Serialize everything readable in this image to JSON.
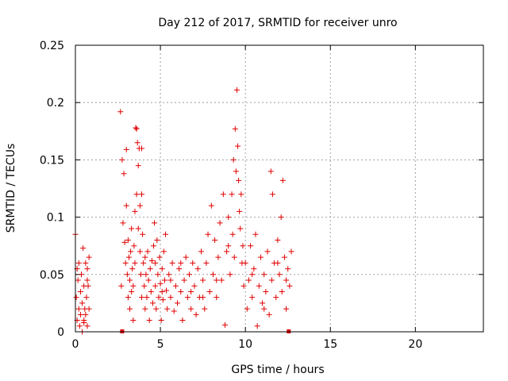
{
  "chart_data": {
    "type": "scatter",
    "title": "Day 212 of 2017, SRMTID for receiver unro",
    "xlabel": "GPS time / hours",
    "ylabel": "SRMTID / TECUs",
    "xlim": [
      0,
      24
    ],
    "ylim": [
      0,
      0.25
    ],
    "x_ticks": [
      0,
      5,
      10,
      15,
      20
    ],
    "y_ticks": [
      0,
      0.05,
      0.1,
      0.15,
      0.2,
      0.25
    ],
    "x_tick_labels": [
      "0",
      "5",
      "10",
      "15",
      "20"
    ],
    "y_tick_labels": [
      "0",
      "0.05",
      "0.1",
      "0.15",
      "0.2",
      "0.25"
    ],
    "grid": true,
    "legend": "none",
    "marker": "plus",
    "color": "#e00000",
    "series": [
      {
        "points": [
          [
            0.0,
            0.085
          ],
          [
            0.05,
            0.03
          ],
          [
            0.1,
            0.055
          ],
          [
            0.1,
            0.01
          ],
          [
            0.15,
            0.045
          ],
          [
            0.2,
            0.02
          ],
          [
            0.2,
            0.06
          ],
          [
            0.25,
            0.005
          ],
          [
            0.3,
            0.035
          ],
          [
            0.3,
            0.015
          ],
          [
            0.35,
            0.05
          ],
          [
            0.4,
            0.025
          ],
          [
            0.4,
            0.0
          ],
          [
            0.45,
            0.073
          ],
          [
            0.5,
            0.01
          ],
          [
            0.5,
            0.04
          ],
          [
            0.55,
            0.02
          ],
          [
            0.6,
            0.06
          ],
          [
            0.6,
            0.015
          ],
          [
            0.65,
            0.03
          ],
          [
            0.7,
            0.005
          ],
          [
            0.7,
            0.055
          ],
          [
            0.75,
            0.04
          ],
          [
            0.8,
            0.02
          ],
          [
            0.8,
            0.065
          ],
          [
            2.65,
            0.192
          ],
          [
            2.7,
            0.04
          ],
          [
            2.75,
            0.15
          ],
          [
            2.8,
            0.095
          ],
          [
            2.85,
            0.138
          ],
          [
            2.9,
            0.078
          ],
          [
            2.95,
            0.06
          ],
          [
            3.0,
            0.11
          ],
          [
            3.0,
            0.159
          ],
          [
            3.05,
            0.05
          ],
          [
            3.1,
            0.08
          ],
          [
            3.1,
            0.03
          ],
          [
            3.15,
            0.065
          ],
          [
            3.2,
            0.045
          ],
          [
            3.2,
            0.02
          ],
          [
            3.25,
            0.07
          ],
          [
            3.3,
            0.035
          ],
          [
            3.3,
            0.09
          ],
          [
            3.35,
            0.055
          ],
          [
            3.4,
            0.01
          ],
          [
            3.4,
            0.04
          ],
          [
            3.45,
            0.075
          ],
          [
            3.5,
            0.06
          ],
          [
            3.5,
            0.105
          ],
          [
            3.55,
            0.178
          ],
          [
            3.6,
            0.177
          ],
          [
            3.6,
            0.12
          ],
          [
            3.65,
            0.165
          ],
          [
            3.7,
            0.145
          ],
          [
            3.7,
            0.09
          ],
          [
            3.75,
            0.16
          ],
          [
            3.8,
            0.07
          ],
          [
            3.8,
            0.11
          ],
          [
            3.85,
            0.05
          ],
          [
            3.9,
            0.12
          ],
          [
            3.9,
            0.03
          ],
          [
            3.95,
            0.085
          ],
          [
            4.0,
            0.06
          ],
          [
            4.05,
            0.04
          ],
          [
            4.1,
            0.065
          ],
          [
            4.1,
            0.02
          ],
          [
            4.15,
            0.05
          ],
          [
            4.2,
            0.03
          ],
          [
            4.25,
            0.07
          ],
          [
            4.3,
            0.045
          ],
          [
            4.35,
            0.01
          ],
          [
            4.4,
            0.055
          ],
          [
            4.45,
            0.035
          ],
          [
            4.5,
            0.062
          ],
          [
            4.55,
            0.025
          ],
          [
            4.6,
            0.075
          ],
          [
            4.65,
            0.095
          ],
          [
            4.7,
            0.04
          ],
          [
            4.75,
            0.02
          ],
          [
            4.8,
            0.08
          ],
          [
            4.85,
            0.05
          ],
          [
            4.9,
            0.03
          ],
          [
            4.95,
            0.065
          ],
          [
            5.0,
            0.042
          ],
          [
            5.05,
            0.01
          ],
          [
            5.1,
            0.055
          ],
          [
            5.15,
            0.028
          ],
          [
            5.2,
            0.07
          ],
          [
            5.25,
            0.045
          ],
          [
            5.3,
            0.085
          ],
          [
            5.35,
            0.036
          ],
          [
            5.4,
            0.02
          ],
          [
            5.5,
            0.05
          ],
          [
            5.6,
            0.03
          ],
          [
            5.7,
            0.06
          ],
          [
            5.8,
            0.018
          ],
          [
            5.9,
            0.04
          ],
          [
            6.0,
            0.025
          ],
          [
            6.1,
            0.055
          ],
          [
            6.2,
            0.035
          ],
          [
            6.3,
            0.01
          ],
          [
            6.4,
            0.045
          ],
          [
            6.5,
            0.065
          ],
          [
            6.6,
            0.03
          ],
          [
            6.7,
            0.05
          ],
          [
            6.8,
            0.02
          ],
          [
            6.9,
            0.06
          ],
          [
            7.0,
            0.04
          ],
          [
            7.1,
            0.015
          ],
          [
            7.2,
            0.055
          ],
          [
            7.3,
            0.03
          ],
          [
            7.4,
            0.07
          ],
          [
            7.5,
            0.045
          ],
          [
            7.6,
            0.02
          ],
          [
            7.7,
            0.06
          ],
          [
            7.8,
            0.085
          ],
          [
            7.9,
            0.035
          ],
          [
            8.0,
            0.11
          ],
          [
            8.1,
            0.05
          ],
          [
            8.2,
            0.08
          ],
          [
            8.3,
            0.03
          ],
          [
            8.4,
            0.065
          ],
          [
            8.5,
            0.095
          ],
          [
            8.6,
            0.045
          ],
          [
            8.7,
            0.12
          ],
          [
            8.8,
            0.006
          ],
          [
            8.9,
            0.07
          ],
          [
            9.0,
            0.1
          ],
          [
            9.1,
            0.05
          ],
          [
            9.2,
            0.12
          ],
          [
            9.25,
            0.085
          ],
          [
            9.3,
            0.15
          ],
          [
            9.35,
            0.065
          ],
          [
            9.4,
            0.177
          ],
          [
            9.45,
            0.14
          ],
          [
            9.5,
            0.211
          ],
          [
            9.55,
            0.162
          ],
          [
            9.6,
            0.132
          ],
          [
            9.65,
            0.105
          ],
          [
            9.7,
            0.09
          ],
          [
            9.75,
            0.12
          ],
          [
            9.8,
            0.06
          ],
          [
            9.85,
            0.075
          ],
          [
            9.9,
            0.04
          ],
          [
            10.0,
            0.06
          ],
          [
            10.1,
            0.02
          ],
          [
            10.2,
            0.045
          ],
          [
            10.3,
            0.075
          ],
          [
            10.4,
            0.03
          ],
          [
            10.5,
            0.055
          ],
          [
            10.6,
            0.085
          ],
          [
            10.7,
            0.005
          ],
          [
            10.8,
            0.04
          ],
          [
            10.9,
            0.065
          ],
          [
            11.0,
            0.025
          ],
          [
            11.1,
            0.05
          ],
          [
            11.2,
            0.035
          ],
          [
            11.3,
            0.07
          ],
          [
            11.4,
            0.015
          ],
          [
            11.5,
            0.14
          ],
          [
            11.55,
            0.045
          ],
          [
            11.6,
            0.12
          ],
          [
            11.7,
            0.06
          ],
          [
            11.8,
            0.03
          ],
          [
            11.9,
            0.08
          ],
          [
            12.0,
            0.05
          ],
          [
            12.1,
            0.1
          ],
          [
            12.15,
            0.035
          ],
          [
            12.2,
            0.132
          ],
          [
            12.3,
            0.065
          ],
          [
            12.4,
            0.02
          ],
          [
            12.5,
            0.055
          ],
          [
            12.6,
            0.04
          ],
          [
            12.7,
            0.07
          ],
          [
            0.5,
            0.008
          ],
          [
            0.7,
            0.045
          ],
          [
            3.9,
            0.16
          ],
          [
            4.7,
            0.06
          ],
          [
            5.1,
            0.035
          ],
          [
            5.6,
            0.045
          ],
          [
            6.2,
            0.06
          ],
          [
            6.8,
            0.035
          ],
          [
            7.5,
            0.03
          ],
          [
            8.3,
            0.045
          ],
          [
            9.0,
            0.075
          ],
          [
            10.4,
            0.05
          ],
          [
            11.1,
            0.02
          ],
          [
            11.9,
            0.06
          ],
          [
            12.4,
            0.045
          ]
        ]
      }
    ],
    "bottom_markers_x": [
      2.75,
      12.55
    ]
  }
}
